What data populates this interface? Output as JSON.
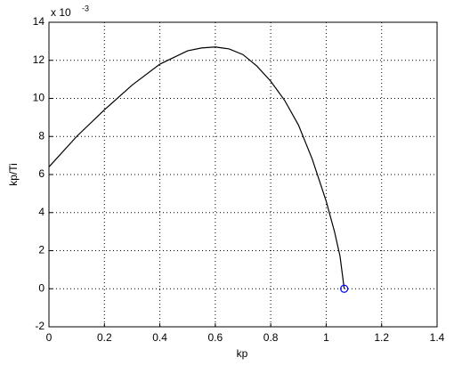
{
  "chart_data": {
    "type": "line",
    "x_label": "kp",
    "y_label": "kp/Ti",
    "y_multiplier": {
      "base": "x 10",
      "exponent": "-3"
    },
    "xlim": [
      0,
      1.4
    ],
    "xticks": [
      0,
      0.2,
      0.4,
      0.6,
      0.8,
      1,
      1.2,
      1.4
    ],
    "ylim": [
      -2,
      14
    ],
    "yticks": [
      -2,
      0,
      2,
      4,
      6,
      8,
      10,
      12,
      14
    ],
    "grid": true,
    "series": [
      {
        "color": "#000000",
        "marker": "none",
        "x": [
          0,
          0.1,
          0.2,
          0.3,
          0.4,
          0.5,
          0.55,
          0.6,
          0.65,
          0.7,
          0.75,
          0.8,
          0.85,
          0.9,
          0.95,
          1.0,
          1.03,
          1.05,
          1.065
        ],
        "values": [
          6.4,
          8.0,
          9.4,
          10.7,
          11.8,
          12.5,
          12.65,
          12.7,
          12.6,
          12.3,
          11.7,
          10.9,
          9.9,
          8.6,
          6.8,
          4.6,
          3.0,
          1.7,
          0
        ]
      },
      {
        "color": "#0000ff",
        "marker": "circle",
        "x": [
          1.065
        ],
        "values": [
          0
        ]
      }
    ]
  }
}
